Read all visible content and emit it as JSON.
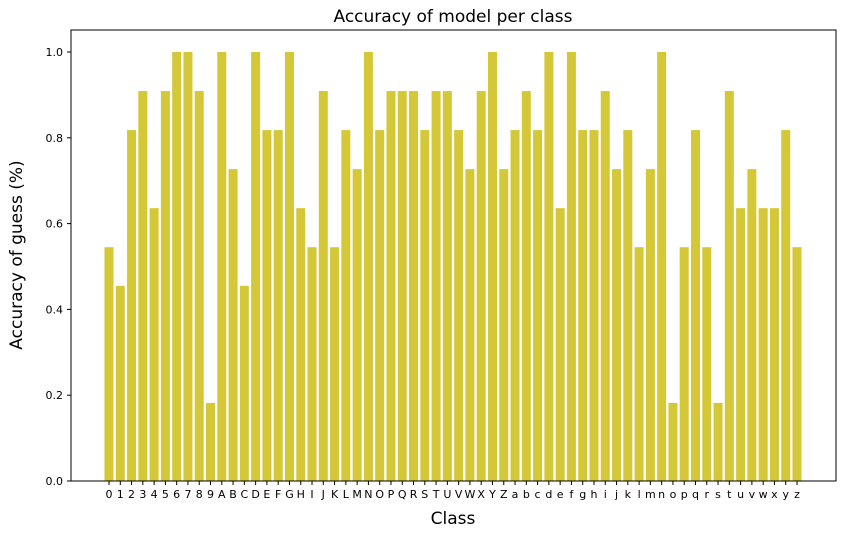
{
  "chart_data": {
    "type": "bar",
    "title": "Accuracy of model per class",
    "xlabel": "Class",
    "ylabel": "Accuracy of guess (%)",
    "ylim": [
      0,
      1.05
    ],
    "yticks": [
      "0.0",
      "0.2",
      "0.4",
      "0.6",
      "0.8",
      "1.0"
    ],
    "categories": [
      "0",
      "1",
      "2",
      "3",
      "4",
      "5",
      "6",
      "7",
      "8",
      "9",
      "A",
      "B",
      "C",
      "D",
      "E",
      "F",
      "G",
      "H",
      "I",
      "J",
      "K",
      "L",
      "M",
      "N",
      "O",
      "P",
      "Q",
      "R",
      "S",
      "T",
      "U",
      "V",
      "W",
      "X",
      "Y",
      "Z",
      "a",
      "b",
      "c",
      "d",
      "e",
      "f",
      "g",
      "h",
      "i",
      "j",
      "k",
      "l",
      "m",
      "n",
      "o",
      "p",
      "q",
      "r",
      "s",
      "t",
      "u",
      "v",
      "w",
      "x",
      "y",
      "z"
    ],
    "values": [
      0.545,
      0.455,
      0.818,
      0.909,
      0.636,
      0.909,
      1.0,
      1.0,
      0.909,
      0.182,
      1.0,
      0.727,
      0.455,
      1.0,
      0.818,
      0.818,
      1.0,
      0.636,
      0.545,
      0.909,
      0.545,
      0.818,
      0.727,
      1.0,
      0.818,
      0.909,
      0.909,
      0.909,
      0.818,
      0.909,
      0.909,
      0.818,
      0.727,
      0.909,
      1.0,
      0.727,
      0.818,
      0.909,
      0.818,
      1.0,
      0.636,
      1.0,
      0.818,
      0.818,
      0.909,
      0.727,
      0.818,
      0.545,
      0.727,
      1.0,
      0.182,
      0.545,
      0.818,
      0.545,
      0.182,
      0.909,
      0.636,
      0.727,
      0.636,
      0.636,
      0.818,
      0.545
    ],
    "bar_color": "#d4c838",
    "grid": false,
    "legend": "none"
  }
}
